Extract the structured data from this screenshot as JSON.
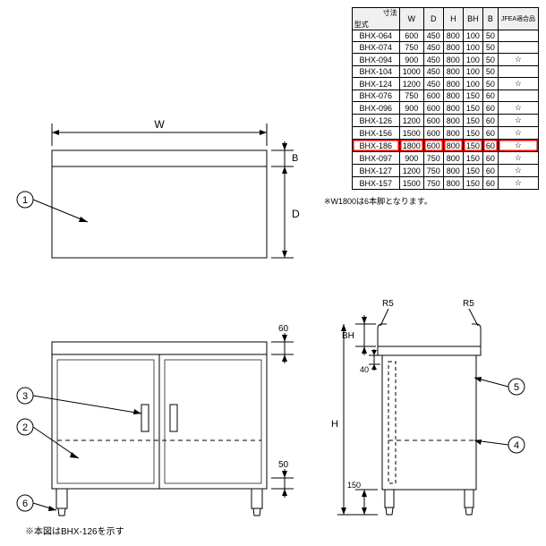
{
  "table": {
    "header_diag_top": "寸法",
    "header_diag_bottom": "型式",
    "columns": [
      "W",
      "D",
      "H",
      "BH",
      "B",
      "JFEA適合品"
    ],
    "rows": [
      [
        "BHX-064",
        "600",
        "450",
        "800",
        "100",
        "50",
        ""
      ],
      [
        "BHX-074",
        "750",
        "450",
        "800",
        "100",
        "50",
        ""
      ],
      [
        "BHX-094",
        "900",
        "450",
        "800",
        "100",
        "50",
        "☆"
      ],
      [
        "BHX-104",
        "1000",
        "450",
        "800",
        "100",
        "50",
        ""
      ],
      [
        "BHX-124",
        "1200",
        "450",
        "800",
        "100",
        "50",
        "☆"
      ],
      [
        "BHX-076",
        "750",
        "600",
        "800",
        "150",
        "60",
        ""
      ],
      [
        "BHX-096",
        "900",
        "600",
        "800",
        "150",
        "60",
        "☆"
      ],
      [
        "BHX-126",
        "1200",
        "600",
        "800",
        "150",
        "60",
        "☆"
      ],
      [
        "BHX-156",
        "1500",
        "600",
        "800",
        "150",
        "60",
        "☆"
      ],
      [
        "BHX-186",
        "1800",
        "600",
        "800",
        "150",
        "60",
        "☆"
      ],
      [
        "BHX-097",
        "900",
        "750",
        "800",
        "150",
        "60",
        "☆"
      ],
      [
        "BHX-127",
        "1200",
        "750",
        "800",
        "150",
        "60",
        "☆"
      ],
      [
        "BHX-157",
        "1500",
        "750",
        "800",
        "150",
        "60",
        "☆"
      ]
    ],
    "highlight_index": 9,
    "note": "※W1800は6本脚となります。"
  },
  "topview": {
    "label_W": "W",
    "label_D": "D",
    "label_B": "B",
    "callout1": "1"
  },
  "frontview": {
    "dim_60": "60",
    "dim_50": "50",
    "callout2": "2",
    "callout3": "3",
    "callout6": "6",
    "caption": "※本図はBHX-126を示す"
  },
  "sideview": {
    "label_R5a": "R5",
    "label_R5b": "R5",
    "label_BH": "BH",
    "label_H": "H",
    "dim_40": "40",
    "dim_150": "150",
    "callout4": "4",
    "callout5": "5"
  }
}
